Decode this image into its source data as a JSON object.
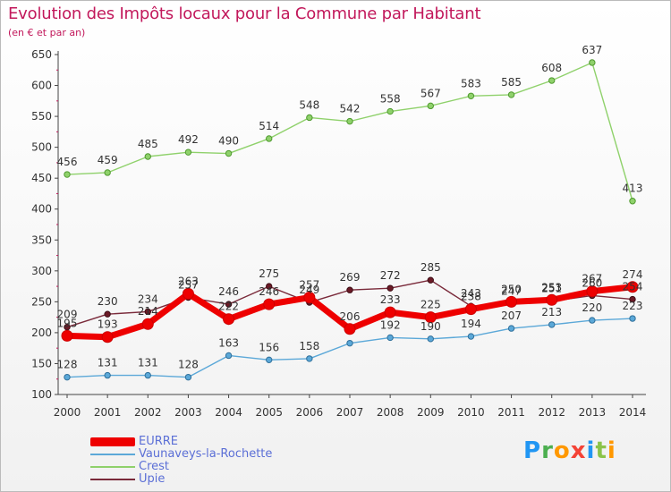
{
  "header": {
    "title": "Evolution des Impôts locaux pour la Commune par Habitant",
    "subtitle": "(en € et par an)"
  },
  "logo": {
    "text": "Proxiti",
    "colors": [
      "#2196f3",
      "#4caf50",
      "#ff9800",
      "#f44336",
      "#2196f3",
      "#8bc34a",
      "#ff9800"
    ]
  },
  "chart_data": {
    "type": "line",
    "title": "Evolution des Impôts locaux pour la Commune par Habitant",
    "subtitle": "(en € et par an)",
    "xlabel": "",
    "ylabel": "",
    "categories": [
      "2000",
      "2001",
      "2002",
      "2003",
      "2004",
      "2005",
      "2006",
      "2007",
      "2008",
      "2009",
      "2010",
      "2011",
      "2012",
      "2013",
      "2014"
    ],
    "ylim": [
      100,
      650
    ],
    "yticks": [
      100,
      150,
      200,
      250,
      300,
      350,
      400,
      450,
      500,
      550,
      600,
      650
    ],
    "grid": false,
    "legend_position": "bottom-left",
    "series": [
      {
        "name": "EURRE",
        "color": "#ee0000",
        "values": [
          195,
          193,
          214,
          263,
          222,
          246,
          257,
          206,
          233,
          225,
          238,
          250,
          253,
          267,
          274
        ]
      },
      {
        "name": "Vaunaveys-la-Rochette",
        "color": "#5ba8d8",
        "values": [
          128,
          131,
          131,
          128,
          163,
          156,
          158,
          183,
          192,
          190,
          194,
          207,
          213,
          220,
          223
        ]
      },
      {
        "name": "Crest",
        "color": "#8fd16b",
        "values": [
          456,
          459,
          485,
          492,
          490,
          514,
          548,
          542,
          558,
          567,
          583,
          585,
          608,
          637,
          413
        ]
      },
      {
        "name": "Upie",
        "color": "#7a2a3a",
        "values": [
          209,
          230,
          234,
          257,
          246,
          275,
          249,
          269,
          272,
          285,
          243,
          247,
          251,
          260,
          254
        ]
      }
    ],
    "data_labels": {
      "EURRE": [
        "195",
        "193",
        "214",
        "263",
        "222",
        "246",
        "257",
        "206",
        "233",
        "225",
        "238",
        "250",
        "253",
        "267",
        "274"
      ],
      "Vaunaveys-la-Rochette": [
        "128",
        "131",
        "131",
        "128",
        "163",
        "156",
        "158",
        "",
        "192",
        "190",
        "194",
        "207",
        "213",
        "220",
        "223"
      ],
      "Crest": [
        "456",
        "459",
        "485",
        "492",
        "490",
        "514",
        "548",
        "542",
        "558",
        "567",
        "583",
        "585",
        "608",
        "637",
        "413"
      ],
      "Upie": [
        "209",
        "230",
        "234",
        "257",
        "246",
        "275",
        "249",
        "269",
        "272",
        "285",
        "243",
        "247",
        "251",
        "260",
        "254"
      ]
    }
  }
}
